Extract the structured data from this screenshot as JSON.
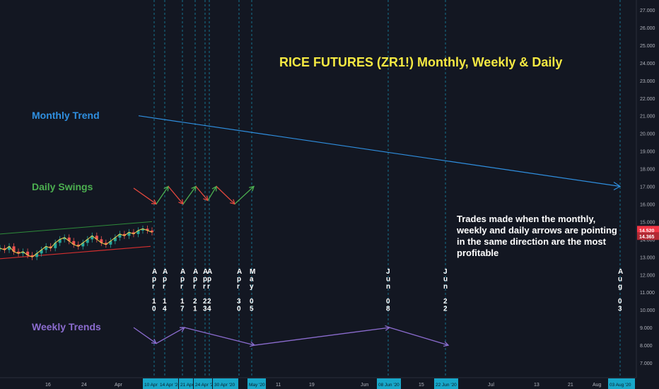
{
  "annotations": {
    "title": "RICE FUTURES (ZR1!) Monthly, Weekly & Daily",
    "monthly_label": "Monthly Trend",
    "daily_label": "Daily Swings",
    "weekly_label": "Weekly Trends",
    "note": "Trades made when the monthly, weekly and daily arrows are pointing in the same direction are the most profitable"
  },
  "colors": {
    "background": "#131722",
    "monthly": "#2f8fe0",
    "daily_up": "#4caf50",
    "daily_down": "#e5483e",
    "weekly": "#8b6ccf",
    "title": "#f5e942",
    "price_tag_last": "#f23645",
    "price_tag_prev": "#f23645",
    "date_tag": "#18a7c9",
    "channel_upper": "#2e8b3a",
    "channel_lower": "#d32f2f"
  },
  "chart_data": {
    "type": "line",
    "y_axis": {
      "ticks": [
        "27.000",
        "26.000",
        "25.000",
        "24.000",
        "23.000",
        "22.000",
        "21.000",
        "20.000",
        "19.000",
        "18.000",
        "17.000",
        "16.000",
        "15.000",
        "14.000",
        "13.000",
        "12.000",
        "11.000",
        "10.000",
        "9.000",
        "8.000",
        "7.000"
      ],
      "last_price": "14.520",
      "prev_price": "14.365"
    },
    "x_axis": {
      "ticks": [
        "16",
        "24",
        "Apr",
        "11",
        "19",
        "Jun",
        "15",
        "Jul",
        "13",
        "21",
        "Aug"
      ],
      "date_tags": [
        "10 Apr '20",
        "14 Apr '20",
        "21 Apr '20",
        "24 Apr '20",
        "30 Apr '20",
        "May '20",
        "08 Jun '20",
        "22 Jun '20",
        "03 Aug '20"
      ]
    },
    "vertical_markers": [
      {
        "label": "Apr\n10"
      },
      {
        "label": "Apr\n14"
      },
      {
        "label": "Apr\n17"
      },
      {
        "label": "Apr\n21"
      },
      {
        "label": "Apr\n23"
      },
      {
        "label": "Apr\n24"
      },
      {
        "label": "Apr\n30"
      },
      {
        "label": "May\n05"
      },
      {
        "label": "Jun\n08"
      },
      {
        "label": "Jun\n22"
      },
      {
        "label": "Aug\n03"
      }
    ],
    "monthly_trend": {
      "start": 21.0,
      "end": 17.0
    },
    "daily_swings": [
      16.9,
      16.0,
      17.0,
      16.0,
      17.0,
      16.2,
      17.0,
      16.0,
      17.0
    ],
    "weekly_trends": [
      9.0,
      8.1,
      9.0,
      8.0,
      9.0,
      8.0
    ],
    "price_series": [
      13.5,
      13.4,
      13.6,
      13.3,
      13.2,
      13.3,
      13.1,
      13.0,
      13.2,
      13.4,
      13.6,
      13.5,
      13.8,
      14.0,
      14.1,
      13.9,
      13.7,
      13.6,
      13.8,
      14.0,
      14.2,
      14.0,
      13.8,
      13.7,
      13.9,
      14.1,
      14.3,
      14.2,
      14.4,
      14.3,
      14.5,
      14.6,
      14.5,
      14.4
    ]
  }
}
